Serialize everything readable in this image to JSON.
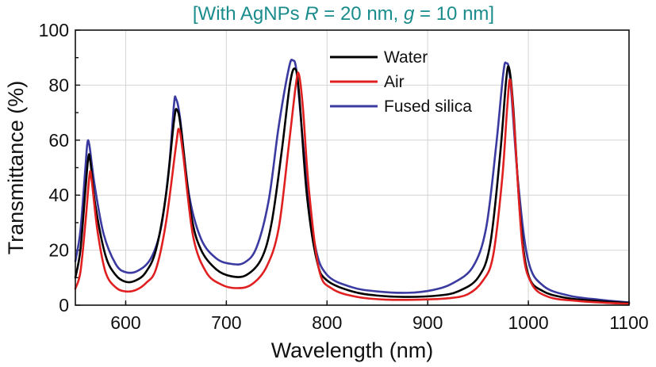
{
  "chart_data": {
    "type": "line",
    "title": {
      "prefix": "[With AgNPs ",
      "r_symbol": "R",
      "r_value": " = 20 nm, ",
      "g_symbol": "g",
      "g_value": " = 10 nm]"
    },
    "xlabel": "Wavelength (nm)",
    "ylabel": "Transmittance (%)",
    "xlim": [
      550,
      1100
    ],
    "ylim": [
      0,
      100
    ],
    "x_ticks": [
      "600",
      "700",
      "800",
      "900",
      "1000",
      "1100"
    ],
    "y_ticks": [
      "0",
      "20",
      "40",
      "60",
      "80",
      "100"
    ],
    "grid": true,
    "legend_position": "top-center",
    "series": [
      {
        "name": "Water",
        "color": "#000000",
        "points": [
          [
            550,
            10
          ],
          [
            555,
            20
          ],
          [
            560,
            42
          ],
          [
            563,
            54
          ],
          [
            565,
            52
          ],
          [
            570,
            36
          ],
          [
            580,
            18
          ],
          [
            590,
            11
          ],
          [
            600,
            8.5
          ],
          [
            610,
            9
          ],
          [
            620,
            12
          ],
          [
            630,
            20
          ],
          [
            640,
            40
          ],
          [
            648,
            67
          ],
          [
            651,
            71
          ],
          [
            655,
            64
          ],
          [
            665,
            33
          ],
          [
            675,
            20
          ],
          [
            690,
            13
          ],
          [
            705,
            10.5
          ],
          [
            720,
            11
          ],
          [
            735,
            17
          ],
          [
            745,
            30
          ],
          [
            755,
            56
          ],
          [
            763,
            80
          ],
          [
            768,
            86
          ],
          [
            772,
            78
          ],
          [
            780,
            40
          ],
          [
            790,
            16
          ],
          [
            800,
            9
          ],
          [
            825,
            5
          ],
          [
            850,
            3.5
          ],
          [
            880,
            3
          ],
          [
            910,
            3.5
          ],
          [
            930,
            5
          ],
          [
            950,
            10
          ],
          [
            962,
            22
          ],
          [
            972,
            55
          ],
          [
            978,
            82
          ],
          [
            981,
            86
          ],
          [
            985,
            72
          ],
          [
            992,
            32
          ],
          [
            1000,
            11
          ],
          [
            1015,
            5
          ],
          [
            1040,
            2.5
          ],
          [
            1070,
            1.5
          ],
          [
            1100,
            0.8
          ]
        ]
      },
      {
        "name": "Air",
        "color": "#e02020",
        "points": [
          [
            550,
            6
          ],
          [
            555,
            12
          ],
          [
            560,
            30
          ],
          [
            564,
            47
          ],
          [
            566,
            46
          ],
          [
            572,
            27
          ],
          [
            580,
            12
          ],
          [
            590,
            6.5
          ],
          [
            600,
            5
          ],
          [
            610,
            5.5
          ],
          [
            620,
            8
          ],
          [
            630,
            13
          ],
          [
            640,
            30
          ],
          [
            650,
            58
          ],
          [
            653,
            64
          ],
          [
            657,
            55
          ],
          [
            667,
            25
          ],
          [
            680,
            12
          ],
          [
            695,
            7.5
          ],
          [
            710,
            6.2
          ],
          [
            725,
            7.5
          ],
          [
            740,
            14
          ],
          [
            752,
            28
          ],
          [
            762,
            58
          ],
          [
            769,
            80
          ],
          [
            772,
            84
          ],
          [
            776,
            72
          ],
          [
            782,
            42
          ],
          [
            792,
            13
          ],
          [
            805,
            6
          ],
          [
            830,
            3
          ],
          [
            860,
            2
          ],
          [
            890,
            2
          ],
          [
            920,
            2.5
          ],
          [
            940,
            4
          ],
          [
            955,
            9
          ],
          [
            965,
            18
          ],
          [
            974,
            46
          ],
          [
            979,
            72
          ],
          [
            982,
            82
          ],
          [
            986,
            65
          ],
          [
            994,
            22
          ],
          [
            1003,
            8
          ],
          [
            1020,
            3
          ],
          [
            1050,
            1.5
          ],
          [
            1080,
            0.8
          ],
          [
            1100,
            0.5
          ]
        ]
      },
      {
        "name": "Fused silica",
        "color": "#3a3aa0",
        "points": [
          [
            550,
            16
          ],
          [
            555,
            27
          ],
          [
            560,
            50
          ],
          [
            562,
            59
          ],
          [
            564,
            58
          ],
          [
            569,
            44
          ],
          [
            578,
            26
          ],
          [
            590,
            15
          ],
          [
            600,
            12
          ],
          [
            612,
            12.5
          ],
          [
            625,
            17
          ],
          [
            635,
            28
          ],
          [
            643,
            50
          ],
          [
            648,
            73
          ],
          [
            650,
            75
          ],
          [
            654,
            68
          ],
          [
            663,
            40
          ],
          [
            675,
            24
          ],
          [
            690,
            17
          ],
          [
            705,
            15
          ],
          [
            718,
            15.5
          ],
          [
            730,
            21
          ],
          [
            742,
            38
          ],
          [
            752,
            65
          ],
          [
            762,
            86
          ],
          [
            766,
            89
          ],
          [
            770,
            84
          ],
          [
            778,
            52
          ],
          [
            788,
            22
          ],
          [
            800,
            11
          ],
          [
            825,
            6.5
          ],
          [
            850,
            5
          ],
          [
            880,
            4.5
          ],
          [
            905,
            5.5
          ],
          [
            925,
            8
          ],
          [
            945,
            14
          ],
          [
            958,
            28
          ],
          [
            968,
            58
          ],
          [
            975,
            84
          ],
          [
            978,
            88
          ],
          [
            982,
            82
          ],
          [
            990,
            44
          ],
          [
            1000,
            16
          ],
          [
            1015,
            7
          ],
          [
            1040,
            3.5
          ],
          [
            1070,
            2
          ],
          [
            1100,
            1
          ]
        ]
      }
    ]
  }
}
